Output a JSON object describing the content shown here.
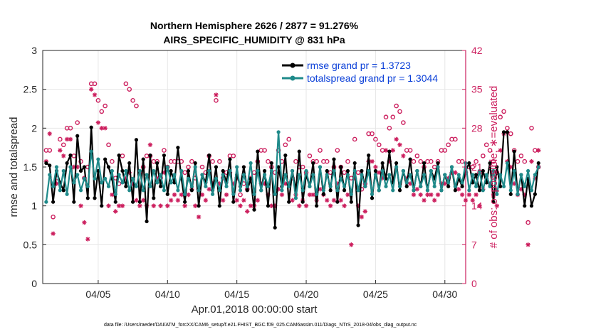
{
  "chart_data": {
    "type": "line",
    "title": "Northern Hemisphere 2626 / 2877 = 91.276%",
    "subtitle": "AIRS_SPECIFIC_HUMIDITY @ 831 hPa",
    "xlabel": "Apr.01,2018 00:00:00 start",
    "ylabel": "rmse and totalspread",
    "y2label": "# of obs: o=possible; ∗=evaluated",
    "xlim": [
      1,
      31.5
    ],
    "ylim": [
      0,
      3
    ],
    "y2lim": [
      0,
      42
    ],
    "xticks": [
      5,
      10,
      15,
      20,
      25,
      30
    ],
    "xtick_labels": [
      "04/05",
      "04/10",
      "04/15",
      "04/20",
      "04/25",
      "04/30"
    ],
    "yticks": [
      0,
      0.5,
      1,
      1.5,
      2,
      2.5,
      3
    ],
    "ytick_labels": [
      "0",
      "0.5",
      "1",
      "1.5",
      "2",
      "2.5",
      "3"
    ],
    "y2ticks": [
      0,
      7,
      14,
      21,
      28,
      35,
      42
    ],
    "y2tick_labels": [
      "0",
      "7",
      "14",
      "21",
      "28",
      "35",
      "42"
    ],
    "grid": true,
    "legend_position": "top-right",
    "x_start": 1.25,
    "x_step": 0.25,
    "series": [
      {
        "name": "rmse grand pr = 1.3723",
        "color": "#000000",
        "axis": "left",
        "values": [
          1.55,
          1.52,
          1.05,
          1.45,
          1.3,
          1.2,
          1.55,
          1.65,
          1.05,
          1.9,
          1.45,
          1.5,
          1.1,
          2.01,
          1.1,
          1.45,
          1.0,
          1.6,
          1.5,
          1.35,
          1.05,
          1.65,
          1.45,
          1.25,
          1.55,
          1.05,
          1.85,
          1.05,
          1.6,
          0.8,
          1.65,
          1.1,
          1.55,
          1.25,
          1.65,
          1.15,
          1.45,
          1.3,
          1.75,
          1.35,
          1.05,
          1.45,
          1.2,
          1.55,
          1.0,
          1.4,
          1.3,
          1.65,
          1.2,
          1.5,
          1.0,
          1.45,
          1.3,
          1.6,
          1.05,
          1.4,
          1.25,
          1.5,
          1.2,
          1.35,
          0.95,
          1.7,
          1.2,
          1.45,
          1.0,
          1.55,
          0.72,
          1.5,
          1.25,
          1.65,
          1.05,
          1.45,
          1.2,
          1.7,
          1.05,
          1.4,
          1.25,
          1.55,
          1.0,
          1.5,
          1.15,
          1.45,
          1.2,
          1.6,
          1.05,
          1.5,
          1.2,
          1.45,
          1.05,
          1.55,
          0.75,
          1.45,
          1.25,
          1.65,
          1.1,
          1.45,
          1.2,
          1.55,
          1.35,
          1.7,
          1.3,
          1.55,
          1.2,
          1.45,
          1.25,
          1.6,
          1.2,
          1.45,
          1.25,
          1.55,
          1.2,
          1.45,
          1.35,
          1.55,
          1.2,
          1.4,
          1.25,
          1.5,
          1.2,
          1.35,
          1.25,
          1.45,
          1.55,
          1.3,
          1.4,
          1.2,
          1.45,
          1.3,
          1.55,
          1.05,
          1.5,
          1.25,
          1.95,
          1.95,
          1.15,
          1.7,
          1.15,
          1.4,
          1.0,
          1.35,
          1.0,
          1.15,
          1.55
        ]
      },
      {
        "name": "totalspread grand pr = 1.3044",
        "color": "#1f8a8a",
        "axis": "left",
        "values": [
          1.05,
          1.4,
          1.25,
          1.5,
          1.2,
          1.45,
          1.15,
          1.5,
          1.3,
          1.4,
          1.2,
          1.35,
          1.25,
          1.7,
          1.35,
          1.6,
          1.3,
          1.35,
          1.25,
          1.45,
          1.15,
          1.4,
          1.3,
          1.45,
          1.2,
          1.35,
          1.25,
          1.45,
          1.2,
          1.4,
          1.25,
          1.45,
          1.3,
          1.4,
          1.2,
          1.5,
          1.3,
          1.4,
          1.2,
          1.45,
          1.15,
          1.35,
          1.25,
          1.5,
          1.2,
          1.4,
          1.25,
          1.45,
          1.15,
          1.35,
          1.2,
          1.4,
          1.25,
          1.45,
          1.15,
          1.5,
          1.2,
          1.4,
          1.25,
          1.55,
          1.15,
          1.45,
          1.2,
          1.4,
          1.25,
          1.45,
          1.15,
          1.95,
          1.2,
          1.4,
          1.25,
          1.45,
          1.1,
          1.4,
          1.2,
          1.45,
          1.25,
          1.4,
          1.15,
          1.5,
          1.2,
          1.4,
          1.25,
          1.45,
          1.2,
          1.35,
          1.25,
          1.4,
          1.15,
          1.45,
          1.2,
          1.4,
          1.25,
          1.45,
          1.15,
          1.4,
          1.2,
          1.45,
          1.25,
          1.4,
          1.2,
          1.5,
          1.25,
          1.45,
          1.3,
          1.4,
          1.2,
          1.45,
          1.25,
          1.4,
          1.2,
          1.45,
          1.25,
          1.5,
          1.2,
          1.4,
          1.3,
          1.5,
          1.25,
          1.4,
          1.3,
          1.55,
          1.2,
          1.4,
          1.25,
          1.45,
          1.2,
          1.4,
          1.25,
          1.45,
          1.15,
          1.4,
          1.25,
          1.55,
          1.2,
          1.45,
          1.15,
          1.4,
          1.25,
          1.45,
          1.2,
          1.4,
          1.5
        ]
      },
      {
        "name": "# of obs possible (o)",
        "color": "#cc1f5e",
        "axis": "right",
        "values": [
          24,
          24,
          12,
          19,
          26,
          25,
          28,
          28,
          23,
          29,
          22,
          19,
          21,
          36,
          36,
          33,
          31,
          32,
          25,
          22,
          19,
          18,
          23,
          36,
          35,
          33,
          32,
          20,
          21,
          23,
          23,
          22,
          22,
          19,
          24,
          21,
          22,
          22,
          22,
          22,
          20,
          21,
          22,
          19,
          17,
          21,
          20,
          23,
          22,
          33,
          22,
          19,
          20,
          23,
          23,
          19,
          16,
          18,
          17,
          19,
          20,
          22,
          24,
          24,
          22,
          21,
          20,
          24,
          22,
          25,
          26,
          19,
          22,
          21,
          21,
          20,
          23,
          22,
          22,
          24,
          22,
          22,
          20,
          21,
          24,
          21,
          20,
          22,
          19,
          26,
          20,
          17,
          18,
          27,
          27,
          26,
          25,
          24,
          30,
          28,
          30,
          32,
          31,
          29,
          24,
          24,
          22,
          23,
          22,
          21,
          22,
          22,
          21,
          22,
          24,
          24,
          25,
          26,
          26,
          22,
          22,
          20,
          21,
          21,
          22,
          20,
          23,
          25,
          24,
          22,
          20,
          30,
          31,
          28,
          27,
          24,
          22,
          23,
          22,
          11,
          28,
          24,
          21
        ]
      },
      {
        "name": "# of obs evaluated (∗)",
        "color": "#cc1f5e",
        "axis": "right",
        "values": [
          22,
          27,
          9,
          18,
          24,
          23,
          26,
          26,
          21,
          21,
          14,
          11,
          8,
          35,
          34,
          29,
          28,
          28,
          14,
          16,
          13,
          14,
          14,
          19,
          20,
          18,
          15,
          14,
          15,
          14,
          25,
          14,
          19,
          14,
          20,
          14,
          15,
          16,
          15,
          16,
          14,
          16,
          17,
          14,
          12,
          16,
          15,
          17,
          18,
          34,
          18,
          15,
          16,
          20,
          18,
          15,
          14,
          15,
          13,
          14,
          14,
          15,
          18,
          18,
          16,
          14,
          14,
          17,
          16,
          18,
          18,
          15,
          16,
          14,
          15,
          14,
          16,
          16,
          15,
          17,
          16,
          15,
          14,
          15,
          18,
          15,
          14,
          16,
          7,
          19,
          14,
          12,
          13,
          22,
          22,
          21,
          20,
          19,
          24,
          22,
          24,
          26,
          25,
          23,
          19,
          18,
          16,
          17,
          16,
          15,
          16,
          16,
          15,
          16,
          18,
          18,
          19,
          20,
          20,
          17,
          16,
          15,
          16,
          15,
          16,
          14,
          17,
          19,
          18,
          16,
          14,
          24,
          27,
          22,
          21,
          18,
          16,
          17,
          16,
          7,
          22,
          19,
          24
        ]
      }
    ],
    "footnote": "data file: /Users/raeder/DAI/ATM_forcXX/CAM6_setup/f.e21.FHIST_BGC.f09_025.CAM6assim.011/Diags_NTrS_2018-04/obs_diag_output.nc"
  }
}
